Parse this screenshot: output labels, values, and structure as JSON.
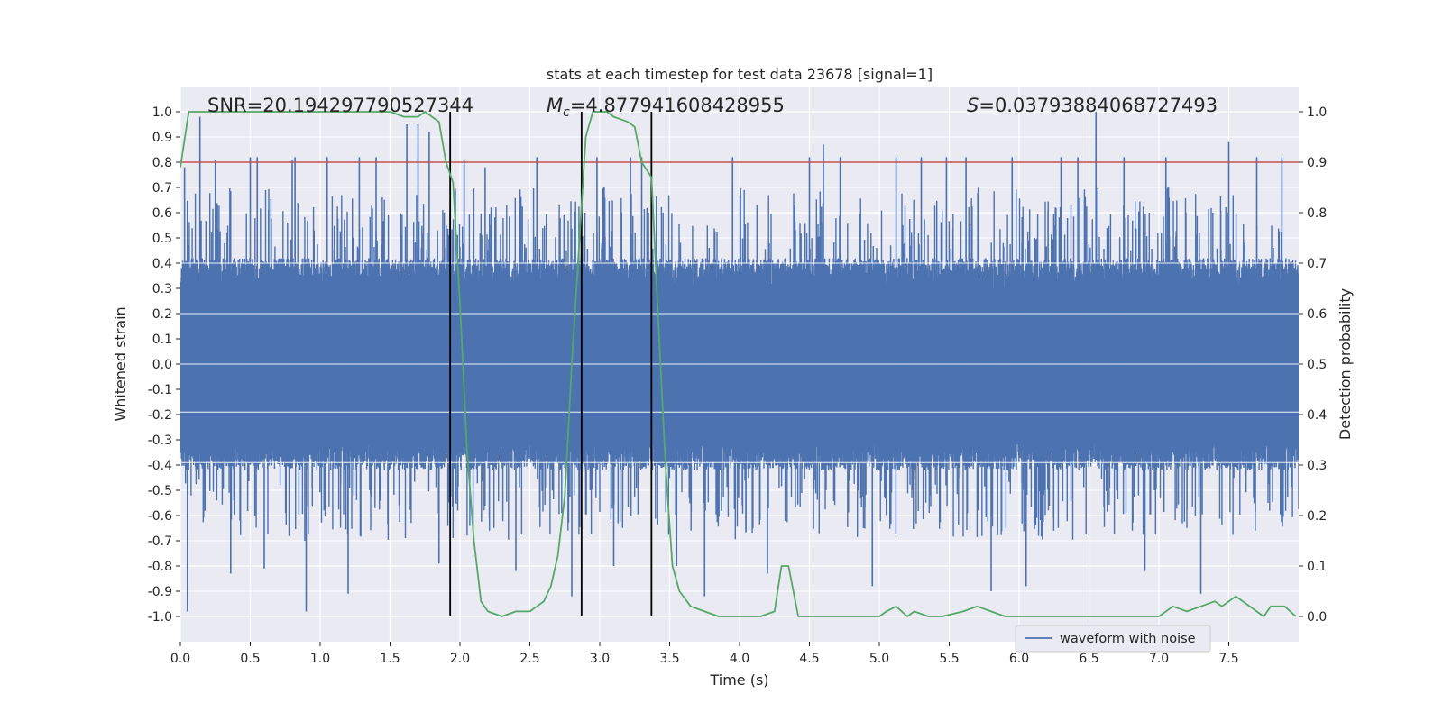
{
  "chart_data": {
    "type": "line",
    "title": "stats at each timestep for test data 23678 [signal=1]",
    "xlabel": "Time (s)",
    "ylabel": "Whitened strain",
    "y2label": "Detection probability",
    "xlim": [
      0,
      8.0
    ],
    "ylim": [
      -1.1,
      1.1
    ],
    "y2lim": [
      -0.05,
      1.05
    ],
    "x_ticks": [
      "0.0",
      "0.5",
      "1.0",
      "1.5",
      "2.0",
      "2.5",
      "3.0",
      "3.5",
      "4.0",
      "4.5",
      "5.0",
      "5.5",
      "6.0",
      "6.5",
      "7.0",
      "7.5"
    ],
    "y_ticks": [
      "1.0",
      "0.9",
      "0.8",
      "0.7",
      "0.6",
      "0.5",
      "0.4",
      "0.3",
      "0.2",
      "0.1",
      "0.0",
      "-0.1",
      "-0.2",
      "-0.3",
      "-0.4",
      "-0.5",
      "-0.6",
      "-0.7",
      "-0.8",
      "-0.9",
      "-1.0"
    ],
    "y2_ticks": [
      "1.0",
      "0.9",
      "0.8",
      "0.7",
      "0.6",
      "0.5",
      "0.4",
      "0.3",
      "0.2",
      "0.1",
      "0.0"
    ],
    "annotations": {
      "snr": "SNR=20.194297790527344",
      "mc_symbol": "M",
      "mc_sub": "c",
      "mc_value": "=4.877941608428955",
      "s_symbol": "S",
      "s_value": "=0.03793884068727493"
    },
    "threshold": {
      "value": 0.8,
      "color": "#c44e52"
    },
    "vertical_lines": [
      1.93,
      2.87,
      3.37
    ],
    "series": [
      {
        "name": "waveform with noise",
        "color": "#4c72b0",
        "axis": "left",
        "envelope_note": "dense noise band, core roughly -0.4 to 0.4, spikes up to ±1.0",
        "spike_times": [
          0.03,
          0.05,
          0.14,
          0.25,
          0.36,
          0.5,
          0.55,
          0.6,
          0.8,
          0.82,
          0.9,
          1.05,
          1.2,
          1.28,
          1.4,
          1.62,
          1.7,
          1.78,
          1.85,
          2.03,
          2.18,
          2.4,
          2.55,
          2.8,
          2.98,
          3.1,
          3.22,
          3.3,
          3.55,
          3.75,
          3.95,
          4.2,
          4.5,
          4.6,
          4.72,
          4.95,
          5.12,
          5.3,
          5.48,
          5.62,
          5.8,
          5.95,
          6.05,
          6.3,
          6.42,
          6.55,
          6.75,
          6.9,
          7.05,
          7.3,
          7.5,
          7.7,
          7.88
        ],
        "spike_values": [
          0.78,
          -0.98,
          0.98,
          0.81,
          -0.83,
          0.82,
          0.82,
          -0.81,
          0.81,
          0.82,
          -0.98,
          0.82,
          -0.91,
          0.82,
          0.82,
          0.95,
          0.95,
          0.92,
          -0.79,
          0.81,
          0.78,
          -0.82,
          0.82,
          -0.92,
          0.82,
          -0.8,
          0.82,
          0.82,
          -0.8,
          -0.92,
          0.82,
          -0.83,
          0.82,
          0.87,
          0.82,
          -0.88,
          0.82,
          0.82,
          0.82,
          0.82,
          -0.9,
          0.82,
          -0.88,
          0.82,
          0.82,
          1.0,
          0.82,
          -0.82,
          0.82,
          -0.91,
          0.88,
          0.82,
          0.82
        ]
      },
      {
        "name": "detection probability",
        "color": "#55a868",
        "axis": "right",
        "x": [
          0.0,
          0.06,
          0.12,
          0.5,
          1.0,
          1.5,
          1.6,
          1.7,
          1.75,
          1.8,
          1.85,
          1.9,
          1.95,
          2.0,
          2.05,
          2.1,
          2.15,
          2.2,
          2.3,
          2.4,
          2.5,
          2.55,
          2.6,
          2.65,
          2.7,
          2.75,
          2.8,
          2.9,
          2.95,
          3.0,
          3.05,
          3.1,
          3.2,
          3.25,
          3.3,
          3.37,
          3.42,
          3.47,
          3.52,
          3.57,
          3.65,
          3.75,
          3.85,
          4.0,
          4.15,
          4.25,
          4.3,
          4.35,
          4.42,
          4.5,
          4.6,
          5.0,
          5.05,
          5.12,
          5.2,
          5.25,
          5.35,
          5.45,
          5.6,
          5.7,
          5.8,
          5.9,
          6.0,
          6.1,
          6.5,
          7.0,
          7.1,
          7.2,
          7.3,
          7.4,
          7.45,
          7.55,
          7.6,
          7.7,
          7.75,
          7.8,
          7.9,
          7.98
        ],
        "y": [
          0.89,
          1.0,
          1.0,
          1.0,
          1.0,
          1.0,
          0.99,
          0.99,
          1.0,
          0.99,
          0.98,
          0.9,
          0.86,
          0.62,
          0.33,
          0.15,
          0.03,
          0.01,
          0.0,
          0.01,
          0.01,
          0.02,
          0.03,
          0.06,
          0.12,
          0.24,
          0.5,
          0.95,
          1.0,
          1.0,
          1.0,
          0.99,
          0.98,
          0.97,
          0.9,
          0.87,
          0.58,
          0.3,
          0.1,
          0.05,
          0.02,
          0.01,
          0.0,
          0.0,
          0.0,
          0.01,
          0.1,
          0.1,
          0.0,
          0.0,
          0.0,
          0.0,
          0.01,
          0.02,
          0.0,
          0.01,
          0.0,
          0.0,
          0.01,
          0.02,
          0.01,
          0.0,
          0.0,
          0.0,
          0.0,
          0.0,
          0.02,
          0.01,
          0.02,
          0.03,
          0.02,
          0.04,
          0.03,
          0.01,
          0.0,
          0.02,
          0.02,
          0.0
        ]
      }
    ],
    "legend": {
      "label": "waveform with noise",
      "position": "lower-right"
    }
  }
}
